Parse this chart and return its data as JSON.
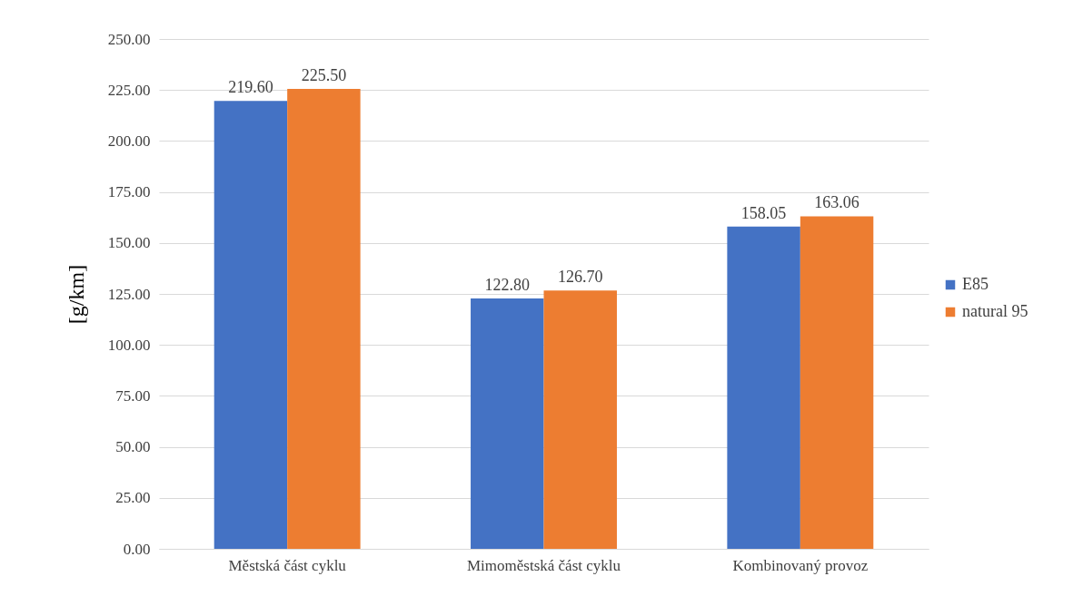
{
  "chart_data": {
    "type": "bar",
    "ylabel": "[g/km]",
    "categories": [
      "Městská část cyklu",
      "Mimoměstská část cyklu",
      "Kombinovaný provoz"
    ],
    "series": [
      {
        "name": "E85",
        "color": "#4472c4",
        "values": [
          219.6,
          122.8,
          158.05
        ],
        "value_labels": [
          "219.60",
          "122.80",
          "158.05"
        ]
      },
      {
        "name": "natural 95",
        "color": "#ed7d31",
        "values": [
          225.5,
          126.7,
          163.06
        ],
        "value_labels": [
          "225.50",
          "126.70",
          "163.06"
        ]
      }
    ],
    "ylim": [
      0,
      250
    ],
    "yticks": [
      {
        "value": 0,
        "label": "0.00"
      },
      {
        "value": 25,
        "label": "25.00"
      },
      {
        "value": 50,
        "label": "50.00"
      },
      {
        "value": 75,
        "label": "75.00"
      },
      {
        "value": 100,
        "label": "100.00"
      },
      {
        "value": 125,
        "label": "125.00"
      },
      {
        "value": 150,
        "label": "150.00"
      },
      {
        "value": 175,
        "label": "175.00"
      },
      {
        "value": 200,
        "label": "200.00"
      },
      {
        "value": 225,
        "label": "225.00"
      },
      {
        "value": 250,
        "label": "250.00"
      }
    ],
    "grid": "y",
    "legend": "right"
  }
}
